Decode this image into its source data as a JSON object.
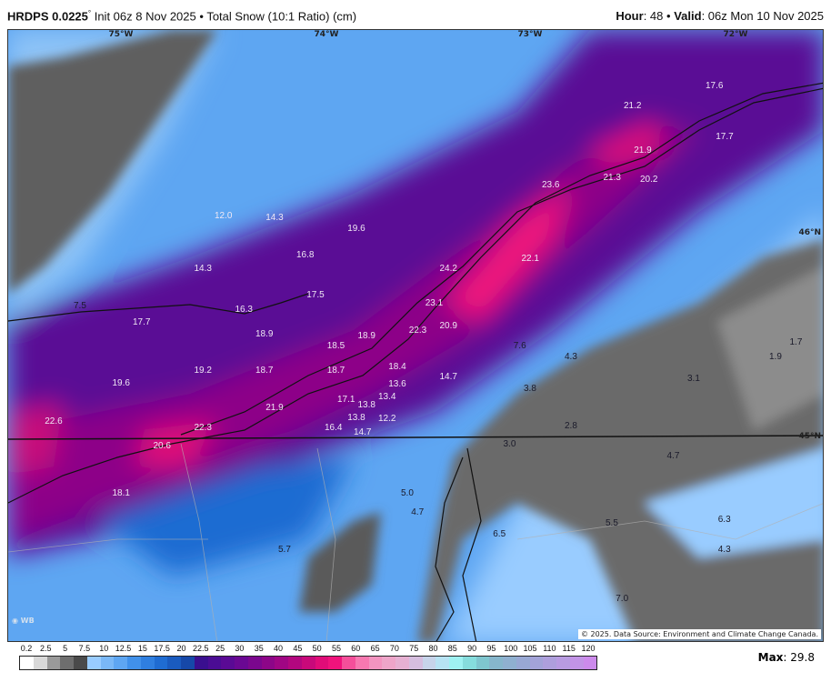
{
  "header": {
    "model": "HRDPS 0.0225",
    "degree": "°",
    "init": "Init 06z 8 Nov 2025",
    "separator": "•",
    "product": "Total Snow (10:1 Ratio) (cm)",
    "hour_label": "Hour",
    "hour": "48",
    "valid_label": "Valid",
    "valid": "06z Mon 10 Nov 2025"
  },
  "map": {
    "longitudes": [
      "75°W",
      "74°W",
      "73°W",
      "72°W"
    ],
    "latitudes": [
      "46°N",
      "45°N"
    ],
    "credit": "© 2025. Data Source: Environment and Climate Change Canada.",
    "logo": "WEATHERBELL",
    "values": [
      {
        "v": "17.6",
        "lon": -72.1,
        "lat": 46.7
      },
      {
        "v": "21.2",
        "lon": -72.5,
        "lat": 46.6
      },
      {
        "v": "17.7",
        "lon": -72.05,
        "lat": 46.45
      },
      {
        "v": "21.9",
        "lon": -72.45,
        "lat": 46.38
      },
      {
        "v": "21.3",
        "lon": -72.6,
        "lat": 46.25
      },
      {
        "v": "20.2",
        "lon": -72.42,
        "lat": 46.24
      },
      {
        "v": "23.6",
        "lon": -72.9,
        "lat": 46.21
      },
      {
        "v": "12.0",
        "lon": -74.5,
        "lat": 46.06
      },
      {
        "v": "14.3",
        "lon": -74.25,
        "lat": 46.05
      },
      {
        "v": "19.6",
        "lon": -73.85,
        "lat": 46.0
      },
      {
        "v": "16.8",
        "lon": -74.1,
        "lat": 45.87
      },
      {
        "v": "22.1",
        "lon": -73.0,
        "lat": 45.85
      },
      {
        "v": "24.2",
        "lon": -73.4,
        "lat": 45.8
      },
      {
        "v": "14.3",
        "lon": -74.6,
        "lat": 45.8
      },
      {
        "v": "17.5",
        "lon": -74.05,
        "lat": 45.67
      },
      {
        "v": "7.5",
        "lon": -75.2,
        "lat": 45.62
      },
      {
        "v": "16.3",
        "lon": -74.4,
        "lat": 45.6
      },
      {
        "v": "23.1",
        "lon": -73.47,
        "lat": 45.63
      },
      {
        "v": "17.7",
        "lon": -74.9,
        "lat": 45.54
      },
      {
        "v": "22.3",
        "lon": -73.55,
        "lat": 45.5
      },
      {
        "v": "20.9",
        "lon": -73.4,
        "lat": 45.52
      },
      {
        "v": "18.9",
        "lon": -74.3,
        "lat": 45.48
      },
      {
        "v": "18.9",
        "lon": -73.8,
        "lat": 45.47
      },
      {
        "v": "18.5",
        "lon": -73.95,
        "lat": 45.42
      },
      {
        "v": "7.6",
        "lon": -73.05,
        "lat": 45.42
      },
      {
        "v": "4.3",
        "lon": -72.8,
        "lat": 45.37
      },
      {
        "v": "1.7",
        "lon": -71.7,
        "lat": 45.44
      },
      {
        "v": "1.9",
        "lon": -71.8,
        "lat": 45.37
      },
      {
        "v": "19.2",
        "lon": -74.6,
        "lat": 45.3
      },
      {
        "v": "18.7",
        "lon": -74.3,
        "lat": 45.3
      },
      {
        "v": "18.7",
        "lon": -73.95,
        "lat": 45.3
      },
      {
        "v": "18.4",
        "lon": -73.65,
        "lat": 45.32
      },
      {
        "v": "14.7",
        "lon": -73.4,
        "lat": 45.27
      },
      {
        "v": "3.1",
        "lon": -72.2,
        "lat": 45.26
      },
      {
        "v": "19.6",
        "lon": -75.0,
        "lat": 45.24
      },
      {
        "v": "3.8",
        "lon": -73.0,
        "lat": 45.21
      },
      {
        "v": "17.1",
        "lon": -73.9,
        "lat": 45.16
      },
      {
        "v": "13.4",
        "lon": -73.7,
        "lat": 45.17
      },
      {
        "v": "13.6",
        "lon": -73.65,
        "lat": 45.18
      },
      {
        "v": "13.8",
        "lon": -73.8,
        "lat": 45.13
      },
      {
        "v": "12.2",
        "lon": -73.7,
        "lat": 45.12
      },
      {
        "v": "21.9",
        "lon": -74.25,
        "lat": 45.12
      },
      {
        "v": "13.8",
        "lon": -73.85,
        "lat": 45.07
      },
      {
        "v": "14.7",
        "lon": -73.82,
        "lat": 45.05
      },
      {
        "v": "16.4",
        "lon": -73.9,
        "lat": 45.02
      },
      {
        "v": "22.6",
        "lon": -75.33,
        "lat": 45.05
      },
      {
        "v": "2.8",
        "lon": -72.8,
        "lat": 45.03
      },
      {
        "v": "22.3",
        "lon": -74.6,
        "lat": 45.02
      },
      {
        "v": "3.0",
        "lon": -73.1,
        "lat": 44.94
      },
      {
        "v": "20.6",
        "lon": -74.8,
        "lat": 44.93
      },
      {
        "v": "4.7",
        "lon": -72.3,
        "lat": 44.88
      },
      {
        "v": "5.0",
        "lon": -73.6,
        "lat": 44.7
      },
      {
        "v": "4.7",
        "lon": -73.55,
        "lat": 44.66
      },
      {
        "v": "18.1",
        "lon": -75.0,
        "lat": 44.7
      },
      {
        "v": "6.3",
        "lon": -72.05,
        "lat": 44.57
      },
      {
        "v": "5.5",
        "lon": -72.6,
        "lat": 44.55
      },
      {
        "v": "6.5",
        "lon": -73.15,
        "lat": 44.5
      },
      {
        "v": "4.3",
        "lon": -72.05,
        "lat": 44.42
      },
      {
        "v": "5.7",
        "lon": -74.2,
        "lat": 44.42
      },
      {
        "v": "7.0",
        "lon": -72.55,
        "lat": 44.18
      }
    ]
  },
  "colorbar": {
    "ticks": [
      "0.2",
      "2.5",
      "5",
      "7.5",
      "10",
      "12.5",
      "15",
      "17.5",
      "20",
      "22.5",
      "25",
      "30",
      "35",
      "40",
      "45",
      "50",
      "55",
      "60",
      "65",
      "70",
      "75",
      "80",
      "85",
      "90",
      "95",
      "100",
      "105",
      "110",
      "115",
      "120"
    ],
    "colors": [
      "#ffffff",
      "#d9d9d9",
      "#9a9a9a",
      "#6e6e6e",
      "#4a4a4a",
      "#99ccff",
      "#7ab8f7",
      "#5ea6f2",
      "#4191ea",
      "#2f7fe0",
      "#1f6cd2",
      "#1a5bbf",
      "#1648a8",
      "#3a0f8f",
      "#4b0c94",
      "#5a0a95",
      "#6a0893",
      "#7b078e",
      "#8d0688",
      "#a00684",
      "#b3077f",
      "#c8097a",
      "#e00c78",
      "#f0137c",
      "#f54f9a",
      "#f778b0",
      "#f394c0",
      "#eea5c9",
      "#e6b0d2",
      "#d6bedf",
      "#c7d4ea",
      "#b7e3f3",
      "#9ff2f2",
      "#86dddd",
      "#7fc6cf",
      "#86b6cc",
      "#8fb0d0",
      "#98a8d4",
      "#a3a3d8",
      "#ae9fdc",
      "#b89be1",
      "#c293e6",
      "#cc8aeb"
    ],
    "max_label": "Max",
    "max_value": "29.8"
  }
}
